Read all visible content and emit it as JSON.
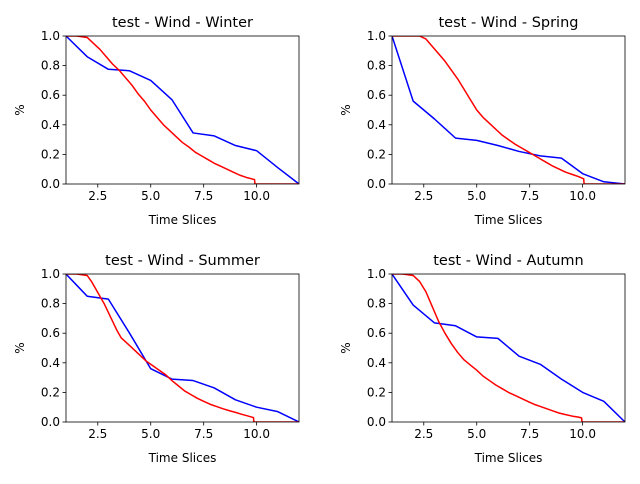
{
  "chart_data": [
    {
      "type": "line",
      "title": "test - Wind - Winter",
      "xlabel": "Time Slices",
      "ylabel": "%",
      "xlim": [
        1,
        12
      ],
      "ylim": [
        0,
        1
      ],
      "xticks": [
        2.5,
        5.0,
        7.5,
        10.0
      ],
      "xtick_labels": [
        "2.5",
        "5.0",
        "7.5",
        "10.0"
      ],
      "yticks": [
        0,
        0.2,
        0.4,
        0.6,
        0.8,
        1.0
      ],
      "ytick_labels": [
        "0.0",
        "0.2",
        "0.4",
        "0.6",
        "0.8",
        "1.0"
      ],
      "grid": false,
      "series": [
        {
          "color": "#0000ff",
          "x": [
            1,
            2,
            3,
            4,
            5,
            6,
            7,
            8,
            9,
            10,
            11,
            12
          ],
          "y": [
            1.0,
            0.86,
            0.775,
            0.765,
            0.7,
            0.57,
            0.345,
            0.325,
            0.26,
            0.225,
            0.11,
            0.0
          ]
        },
        {
          "color": "#ff0000",
          "x": [
            1,
            1.5,
            2,
            2.3,
            2.6,
            2.9,
            3.2,
            3.5,
            3.8,
            4.1,
            4.4,
            4.7,
            5.0,
            5.3,
            5.6,
            5.9,
            6.2,
            6.5,
            6.8,
            7.1,
            7.4,
            7.7,
            8.0,
            8.3,
            8.6,
            8.9,
            9.2,
            9.5,
            9.9,
            9.92,
            10.2,
            10.5,
            11,
            11.5,
            12
          ],
          "y": [
            1.0,
            1.0,
            0.99,
            0.95,
            0.91,
            0.86,
            0.81,
            0.77,
            0.72,
            0.67,
            0.61,
            0.56,
            0.5,
            0.45,
            0.4,
            0.36,
            0.32,
            0.28,
            0.25,
            0.215,
            0.19,
            0.165,
            0.14,
            0.12,
            0.1,
            0.08,
            0.06,
            0.045,
            0.03,
            0.0,
            0.0,
            0.0,
            0.0,
            0.0,
            0.0
          ]
        }
      ]
    },
    {
      "type": "line",
      "title": "test - Wind - Spring",
      "xlabel": "Time Slices",
      "ylabel": "%",
      "xlim": [
        1,
        12
      ],
      "ylim": [
        0,
        1
      ],
      "xticks": [
        2.5,
        5.0,
        7.5,
        10.0
      ],
      "xtick_labels": [
        "2.5",
        "5.0",
        "7.5",
        "10.0"
      ],
      "yticks": [
        0,
        0.2,
        0.4,
        0.6,
        0.8,
        1.0
      ],
      "ytick_labels": [
        "0.0",
        "0.2",
        "0.4",
        "0.6",
        "0.8",
        "1.0"
      ],
      "grid": false,
      "series": [
        {
          "color": "#0000ff",
          "x": [
            1,
            2,
            3,
            4,
            5,
            6,
            7,
            8,
            9,
            10,
            11,
            12
          ],
          "y": [
            1.0,
            0.56,
            0.44,
            0.31,
            0.295,
            0.26,
            0.22,
            0.19,
            0.175,
            0.07,
            0.015,
            0.0
          ]
        },
        {
          "color": "#ff0000",
          "x": [
            1,
            1.5,
            2,
            2.3,
            2.6,
            2.9,
            3.2,
            3.5,
            3.8,
            4.1,
            4.4,
            4.7,
            5.0,
            5.3,
            5.6,
            5.9,
            6.2,
            6.5,
            6.8,
            7.1,
            7.4,
            7.7,
            8.0,
            8.3,
            8.6,
            8.9,
            9.2,
            9.5,
            9.8,
            10.05,
            10.07,
            10.5,
            11,
            11.5,
            12
          ],
          "y": [
            1.0,
            1.0,
            1.0,
            1.0,
            0.98,
            0.93,
            0.88,
            0.83,
            0.77,
            0.71,
            0.64,
            0.57,
            0.5,
            0.45,
            0.41,
            0.37,
            0.33,
            0.3,
            0.27,
            0.245,
            0.22,
            0.195,
            0.17,
            0.145,
            0.12,
            0.1,
            0.08,
            0.065,
            0.05,
            0.035,
            0.0,
            0.0,
            0.0,
            0.0,
            0.0
          ]
        }
      ]
    },
    {
      "type": "line",
      "title": "test - Wind - Summer",
      "xlabel": "Time Slices",
      "ylabel": "%",
      "xlim": [
        1,
        12
      ],
      "ylim": [
        0,
        1
      ],
      "xticks": [
        2.5,
        5.0,
        7.5,
        10.0
      ],
      "xtick_labels": [
        "2.5",
        "5.0",
        "7.5",
        "10.0"
      ],
      "yticks": [
        0,
        0.2,
        0.4,
        0.6,
        0.8,
        1.0
      ],
      "ytick_labels": [
        "0.0",
        "0.2",
        "0.4",
        "0.6",
        "0.8",
        "1.0"
      ],
      "grid": false,
      "series": [
        {
          "color": "#0000ff",
          "x": [
            1,
            2,
            3,
            4,
            5,
            6,
            7,
            8,
            9,
            10,
            11,
            12
          ],
          "y": [
            1.0,
            0.85,
            0.83,
            0.6,
            0.36,
            0.29,
            0.28,
            0.23,
            0.15,
            0.1,
            0.07,
            0.0
          ]
        },
        {
          "color": "#ff0000",
          "x": [
            1,
            1.5,
            2,
            2.2,
            2.4,
            2.6,
            2.8,
            3.0,
            3.2,
            3.4,
            3.6,
            3.9,
            4.2,
            4.5,
            4.8,
            5.1,
            5.4,
            5.7,
            6.0,
            6.3,
            6.6,
            6.9,
            7.2,
            7.5,
            7.8,
            8.1,
            8.4,
            8.7,
            9.0,
            9.3,
            9.6,
            9.85,
            9.87,
            10.5,
            11,
            11.5,
            12
          ],
          "y": [
            1.0,
            1.0,
            0.99,
            0.95,
            0.9,
            0.85,
            0.8,
            0.74,
            0.68,
            0.62,
            0.57,
            0.53,
            0.49,
            0.45,
            0.41,
            0.38,
            0.35,
            0.32,
            0.28,
            0.245,
            0.21,
            0.185,
            0.16,
            0.14,
            0.12,
            0.105,
            0.09,
            0.077,
            0.065,
            0.052,
            0.04,
            0.03,
            0.0,
            0.0,
            0.0,
            0.0,
            0.0
          ]
        }
      ]
    },
    {
      "type": "line",
      "title": "test - Wind - Autumn",
      "xlabel": "Time Slices",
      "ylabel": "%",
      "xlim": [
        1,
        12
      ],
      "ylim": [
        0,
        1
      ],
      "xticks": [
        2.5,
        5.0,
        7.5,
        10.0
      ],
      "xtick_labels": [
        "2.5",
        "5.0",
        "7.5",
        "10.0"
      ],
      "yticks": [
        0,
        0.2,
        0.4,
        0.6,
        0.8,
        1.0
      ],
      "ytick_labels": [
        "0.0",
        "0.2",
        "0.4",
        "0.6",
        "0.8",
        "1.0"
      ],
      "grid": false,
      "series": [
        {
          "color": "#0000ff",
          "x": [
            1,
            2,
            3,
            4,
            5,
            6,
            7,
            8,
            9,
            10,
            11,
            12
          ],
          "y": [
            1.0,
            0.79,
            0.67,
            0.65,
            0.575,
            0.565,
            0.445,
            0.39,
            0.29,
            0.2,
            0.14,
            0.0
          ]
        },
        {
          "color": "#ff0000",
          "x": [
            1,
            1.5,
            2,
            2.3,
            2.6,
            2.9,
            3.2,
            3.5,
            3.8,
            4.1,
            4.4,
            4.7,
            5.0,
            5.3,
            5.6,
            5.9,
            6.2,
            6.5,
            6.8,
            7.1,
            7.4,
            7.7,
            8.0,
            8.3,
            8.6,
            8.9,
            9.2,
            9.5,
            9.8,
            9.95,
            9.97,
            10.5,
            11,
            11.5,
            12
          ],
          "y": [
            1.0,
            1.0,
            0.99,
            0.95,
            0.88,
            0.78,
            0.68,
            0.6,
            0.53,
            0.47,
            0.42,
            0.385,
            0.35,
            0.31,
            0.28,
            0.25,
            0.225,
            0.2,
            0.18,
            0.16,
            0.14,
            0.12,
            0.105,
            0.09,
            0.075,
            0.06,
            0.05,
            0.04,
            0.033,
            0.028,
            0.0,
            0.0,
            0.0,
            0.0,
            0.0
          ]
        }
      ]
    }
  ]
}
